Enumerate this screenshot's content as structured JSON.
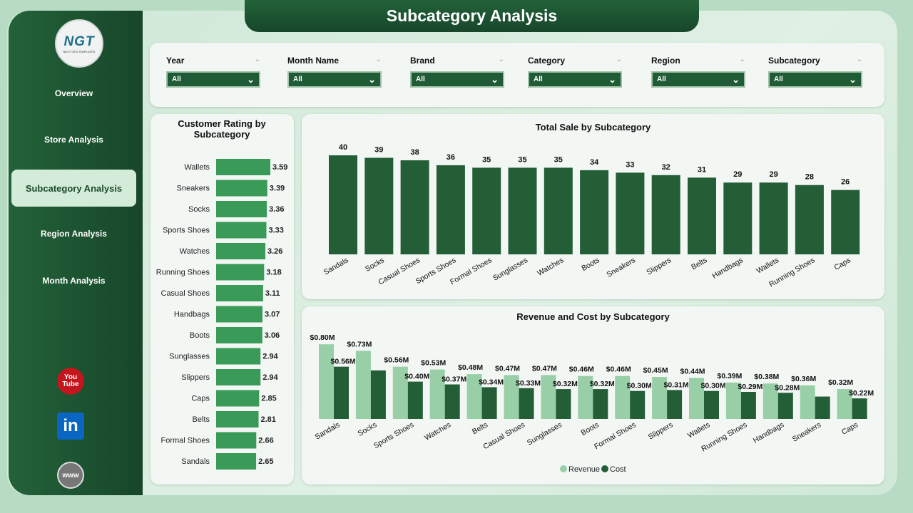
{
  "header": {
    "title": "Subcategory Analysis"
  },
  "logo": {
    "text": "NGT",
    "tagline": "NEXT GEN TEMPLATES"
  },
  "sidebar": {
    "items": [
      {
        "label": "Overview"
      },
      {
        "label": "Store Analysis"
      },
      {
        "label": "Subcategory Analysis",
        "active": true
      },
      {
        "label": "Region Analysis"
      },
      {
        "label": "Month Analysis"
      }
    ],
    "social": [
      {
        "icon": "youtube-icon",
        "label": "You Tube"
      },
      {
        "icon": "linkedin-icon",
        "label": "in"
      },
      {
        "icon": "globe-icon",
        "label": "www"
      }
    ]
  },
  "filters": [
    {
      "label": "Year",
      "value": "All"
    },
    {
      "label": "Month Name",
      "value": "All"
    },
    {
      "label": "Brand",
      "value": "All"
    },
    {
      "label": "Category",
      "value": "All"
    },
    {
      "label": "Region",
      "value": "All"
    },
    {
      "label": "Subcategory",
      "value": "All"
    }
  ],
  "colors": {
    "dark": "#235e37",
    "light": "#98cfa7",
    "rating": "#3a9a58"
  },
  "chart_data": [
    {
      "type": "bar",
      "orientation": "horizontal",
      "title": "Customer Rating by Subcategory",
      "categories": [
        "Wallets",
        "Sneakers",
        "Socks",
        "Sports Shoes",
        "Watches",
        "Running Shoes",
        "Casual Shoes",
        "Handbags",
        "Boots",
        "Sunglasses",
        "Slippers",
        "Caps",
        "Belts",
        "Formal Shoes",
        "Sandals"
      ],
      "values": [
        3.59,
        3.39,
        3.36,
        3.33,
        3.26,
        3.18,
        3.11,
        3.07,
        3.06,
        2.94,
        2.94,
        2.85,
        2.81,
        2.66,
        2.65
      ]
    },
    {
      "type": "bar",
      "title": "Total Sale by Subcategory",
      "categories": [
        "Sandals",
        "Socks",
        "Casual Shoes",
        "Sports Shoes",
        "Formal Shoes",
        "Sunglasses",
        "Watches",
        "Boots",
        "Sneakers",
        "Slippers",
        "Belts",
        "Handbags",
        "Wallets",
        "Running Shoes",
        "Caps"
      ],
      "values": [
        40,
        39,
        38,
        36,
        35,
        35,
        35,
        34,
        33,
        32,
        31,
        29,
        29,
        28,
        26
      ]
    },
    {
      "type": "bar",
      "title": "Revenue and Cost by Subcategory",
      "legend": "bottom",
      "categories": [
        "Sandals",
        "Socks",
        "Sports Shoes",
        "Watches",
        "Belts",
        "Casual Shoes",
        "Sunglasses",
        "Boots",
        "Formal Shoes",
        "Slippers",
        "Wallets",
        "Running Shoes",
        "Handbags",
        "Sneakers",
        "Caps"
      ],
      "series": [
        {
          "name": "Revenue",
          "values": [
            0.8,
            0.73,
            0.56,
            0.53,
            0.48,
            0.47,
            0.47,
            0.46,
            0.46,
            0.45,
            0.44,
            0.39,
            0.38,
            0.36,
            0.32
          ],
          "labels": [
            "$0.80M",
            "$0.73M",
            "$0.56M",
            "$0.53M",
            "$0.48M",
            "$0.47M",
            "$0.47M",
            "$0.46M",
            "$0.46M",
            "$0.45M",
            "$0.44M",
            "$0.39M",
            "$0.38M",
            "$0.36M",
            "$0.32M"
          ]
        },
        {
          "name": "Cost",
          "values": [
            0.56,
            0.52,
            0.4,
            0.37,
            0.34,
            0.33,
            0.32,
            0.32,
            0.3,
            0.31,
            0.3,
            0.29,
            0.28,
            0.24,
            0.22
          ],
          "labels": [
            "$0.56M",
            "",
            "$0.40M",
            "$0.37M",
            "$0.34M",
            "$0.33M",
            "$0.32M",
            "$0.32M",
            "$0.30M",
            "$0.31M",
            "$0.30M",
            "$0.29M",
            "$0.28M",
            "",
            "$0.22M"
          ]
        }
      ]
    }
  ]
}
